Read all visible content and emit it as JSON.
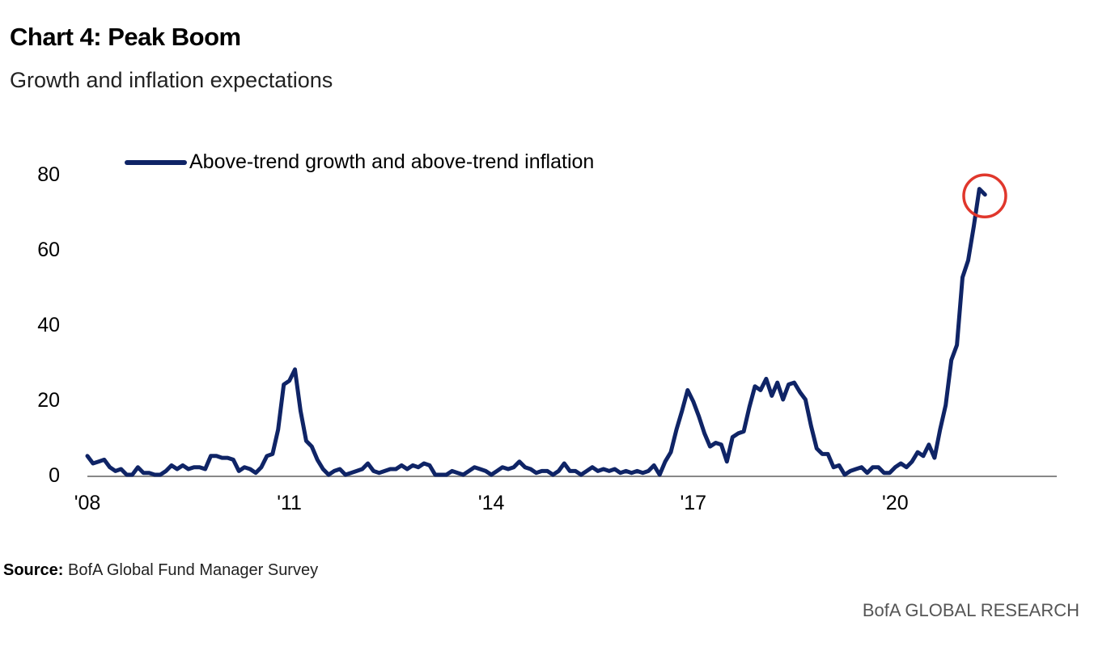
{
  "header": {
    "title": "Chart 4: Peak Boom",
    "subtitle": "Growth and inflation expectations"
  },
  "footer": {
    "source_label": "Source:",
    "source_text": "BofA Global Fund Manager Survey",
    "brand": "BofA GLOBAL RESEARCH"
  },
  "colors": {
    "line": "#0f2466",
    "highlight_circle": "#e0372c",
    "axis": "#888888"
  },
  "chart_data": {
    "type": "line",
    "title": "Chart 4: Peak Boom",
    "subtitle": "Growth and inflation expectations",
    "xlabel": "",
    "ylabel": "",
    "ylim": [
      0,
      80
    ],
    "yticks": [
      0,
      20,
      40,
      60,
      80
    ],
    "ytick_labels": [
      "0",
      "20",
      "40",
      "60",
      "80"
    ],
    "xlim": [
      2008.0,
      2022.4
    ],
    "xticks": [
      2008,
      2011,
      2014,
      2017,
      2020
    ],
    "xtick_labels": [
      "'08",
      "'11",
      "'14",
      "'17",
      "'20"
    ],
    "grid": false,
    "legend": {
      "position": "top-left",
      "entries": [
        "Above-trend growth and above-trend inflation"
      ]
    },
    "annotations": [
      {
        "type": "circle",
        "target": "latest value",
        "x": 2021.33,
        "y": 75
      }
    ],
    "series": [
      {
        "name": "Above-trend growth and above-trend inflation",
        "start": "2008-01",
        "frequency": "monthly",
        "values": [
          5,
          3,
          3.5,
          4,
          2,
          1,
          1.5,
          0,
          0,
          2,
          0.5,
          0.5,
          0,
          0,
          1,
          2.5,
          1.5,
          2.5,
          1.5,
          2,
          2,
          1.5,
          5,
          5,
          4.5,
          4.5,
          4,
          1,
          2,
          1.5,
          0.5,
          2,
          5,
          5.5,
          12,
          24,
          25,
          28,
          17,
          9,
          7.5,
          4,
          1.5,
          0,
          1,
          1.5,
          0,
          0.5,
          1,
          1.5,
          3,
          1,
          0.5,
          1,
          1.5,
          1.5,
          2.5,
          1.5,
          2.5,
          2,
          3,
          2.5,
          0,
          0,
          0,
          1,
          0.5,
          0,
          1,
          2,
          1.5,
          1,
          0,
          1,
          2,
          1.5,
          2,
          3.5,
          2,
          1.5,
          0.5,
          1,
          1,
          0,
          1,
          3,
          1,
          1,
          0,
          1,
          2,
          1,
          1.5,
          1,
          1.5,
          0.5,
          1,
          0.5,
          1,
          0.5,
          1,
          2.5,
          0,
          3.5,
          6,
          12,
          17,
          22.5,
          19.5,
          15.5,
          11,
          7.5,
          8.5,
          8,
          3.5,
          10,
          11,
          11.5,
          18,
          23.5,
          22.5,
          25.5,
          21,
          24.5,
          20,
          24,
          24.5,
          22,
          20,
          13,
          7,
          5.5,
          5.5,
          2,
          2.5,
          0,
          1,
          1.5,
          2,
          0.5,
          2,
          2,
          0.5,
          0.5,
          2,
          3,
          2,
          3.5,
          6,
          5,
          8,
          4.5,
          12,
          18.5,
          30.5,
          34.5,
          52.5,
          57,
          66,
          76,
          74.5
        ]
      }
    ]
  }
}
